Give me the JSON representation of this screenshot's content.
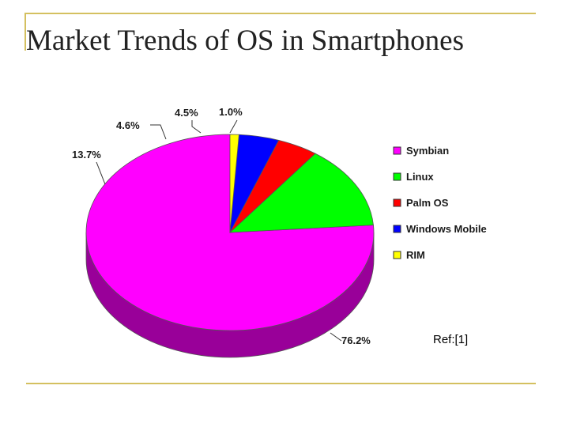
{
  "slide": {
    "title": "Market Trends of OS in Smartphones",
    "reference": "Ref:[1]"
  },
  "chart_data": {
    "type": "pie",
    "title": "Market Trends of OS in Smartphones",
    "legend_position": "right",
    "three_d": true,
    "slices": [
      {
        "name": "Symbian",
        "value": 76.2,
        "label": "76.2%",
        "color": "#ff00ff",
        "side_color": "#990099"
      },
      {
        "name": "Linux",
        "value": 13.7,
        "label": "13.7%",
        "color": "#00ff00",
        "side_color": "#009900"
      },
      {
        "name": "Palm OS",
        "value": 4.6,
        "label": "4.6%",
        "color": "#ff0000",
        "side_color": "#990000"
      },
      {
        "name": "Windows Mobile",
        "value": 4.5,
        "label": "4.5%",
        "color": "#0000ff",
        "side_color": "#000099"
      },
      {
        "name": "RIM",
        "value": 1.0,
        "label": "1.0%",
        "color": "#ffff00",
        "side_color": "#999900"
      }
    ]
  }
}
